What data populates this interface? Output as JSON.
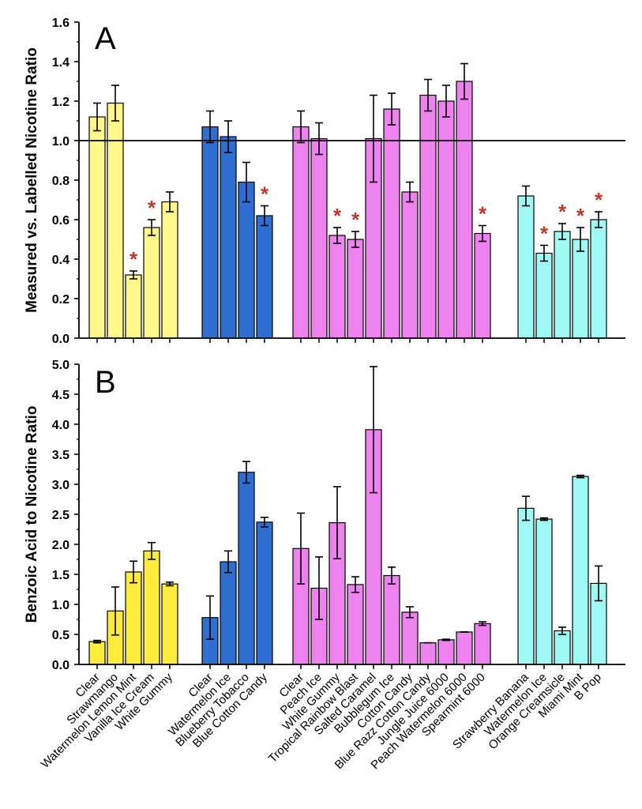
{
  "colors": {
    "yellow": "#fff78a",
    "yellow_dark": "#ffeb3b",
    "blue": "#2f6fd1",
    "magenta": "#ee82ee",
    "cyan": "#9ffaf6",
    "asterisk": "#c0392b"
  },
  "categories": [
    "Clear",
    "Strawmango",
    "Watermelon Lemon Mint",
    "Vanilla Ice Cream",
    "White Gummy",
    "Clear",
    "Watermelon Ice",
    "Blueberry Tobacco",
    "Blue Cotton Candy",
    "Clear",
    "Peach Ice",
    "White Gummy",
    "Tropical Rainbow Blast",
    "Salted Caramel",
    "Bubblegum Ice",
    "Cotton Candy",
    "Blue Razz Cotton Candy",
    "Jungle Juice 6000",
    "Peach Watermelon 6000",
    "Spearmint 6000",
    "Strawberry Banana",
    "Watermelon Ice",
    "Orange Creamsicle",
    "Miami Mint",
    "B Pop"
  ],
  "chart_data": [
    {
      "type": "bar",
      "panel_label": "A",
      "ylabel": "Measured vs. Labelled Nicotine Ratio",
      "ylim": [
        0,
        1.6
      ],
      "yticks": [
        "0.0",
        "0.2",
        "0.4",
        "0.6",
        "0.8",
        "1.0",
        "1.2",
        "1.4",
        "1.6"
      ],
      "reference_line": 1.0,
      "groups": [
        {
          "color": "yellow",
          "values": [
            1.12,
            1.19,
            0.32,
            0.56,
            0.69
          ],
          "errors": [
            0.07,
            0.09,
            0.02,
            0.04,
            0.05
          ],
          "significant": [
            false,
            false,
            true,
            true,
            false
          ]
        },
        {
          "color": "blue",
          "values": [
            1.07,
            1.02,
            0.79,
            0.62
          ],
          "errors": [
            0.08,
            0.08,
            0.1,
            0.05
          ],
          "significant": [
            false,
            false,
            false,
            true
          ]
        },
        {
          "color": "magenta",
          "values": [
            1.07,
            1.01,
            0.52,
            0.5,
            1.01,
            1.16,
            0.74,
            1.23,
            1.2,
            1.3,
            0.53
          ],
          "errors": [
            0.08,
            0.08,
            0.04,
            0.04,
            0.22,
            0.08,
            0.05,
            0.08,
            0.08,
            0.09,
            0.04
          ],
          "significant": [
            false,
            false,
            true,
            true,
            false,
            false,
            false,
            false,
            false,
            false,
            true
          ]
        },
        {
          "color": "cyan",
          "values": [
            0.72,
            0.43,
            0.54,
            0.5,
            0.6
          ],
          "errors": [
            0.05,
            0.04,
            0.04,
            0.06,
            0.04
          ],
          "significant": [
            false,
            true,
            true,
            true,
            true
          ]
        }
      ],
      "asterisk_text": "*"
    },
    {
      "type": "bar",
      "panel_label": "B",
      "ylabel": "Benzoic Acid to Nicotine Ratio",
      "ylim": [
        0,
        5.0
      ],
      "yticks": [
        "0.0",
        "0.5",
        "1.0",
        "1.5",
        "2.0",
        "2.5",
        "3.0",
        "3.5",
        "4.0",
        "4.5",
        "5.0"
      ],
      "groups": [
        {
          "color": "yellow_dark",
          "values": [
            0.38,
            0.89,
            1.54,
            1.89,
            1.34
          ],
          "errors": [
            0.02,
            0.4,
            0.18,
            0.14,
            0.03
          ]
        },
        {
          "color": "blue",
          "values": [
            0.78,
            1.71,
            3.2,
            2.37
          ],
          "errors": [
            0.36,
            0.18,
            0.18,
            0.08
          ]
        },
        {
          "color": "magenta",
          "values": [
            1.93,
            1.27,
            2.36,
            1.33,
            3.91,
            1.48,
            0.87,
            0.36,
            0.41,
            0.54,
            0.68
          ],
          "errors": [
            0.59,
            0.52,
            0.6,
            0.13,
            1.05,
            0.14,
            0.09,
            0.0,
            0.01,
            0.0,
            0.03
          ]
        },
        {
          "color": "cyan",
          "values": [
            2.6,
            2.42,
            0.56,
            3.13,
            1.35
          ],
          "errors": [
            0.2,
            0.02,
            0.06,
            0.02,
            0.29
          ]
        }
      ]
    }
  ]
}
